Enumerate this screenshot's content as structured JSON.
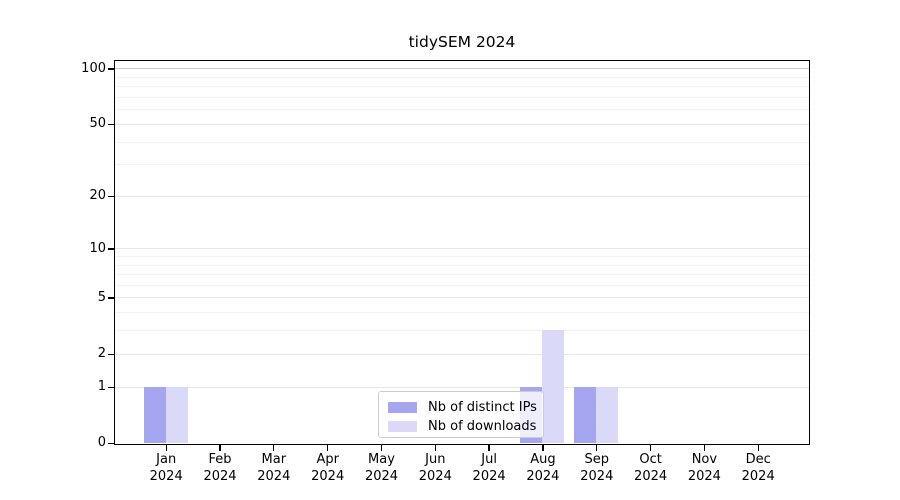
{
  "chart_data": {
    "type": "bar",
    "title": "tidySEM 2024",
    "categories": [
      "Jan 2024",
      "Feb 2024",
      "Mar 2024",
      "Apr 2024",
      "May 2024",
      "Jun 2024",
      "Jul 2024",
      "Aug 2024",
      "Sep 2024",
      "Oct 2024",
      "Nov 2024",
      "Dec 2024"
    ],
    "series": [
      {
        "name": "Nb of distinct IPs",
        "color": "#a5a5f0",
        "values": [
          1,
          0,
          0,
          0,
          0,
          0,
          0,
          1,
          1,
          0,
          0,
          0
        ]
      },
      {
        "name": "Nb of downloads",
        "color": "#dadaf8",
        "values": [
          1,
          0,
          0,
          0,
          0,
          0,
          0,
          3,
          1,
          0,
          0,
          0
        ]
      }
    ],
    "xlabel": "",
    "ylabel": "",
    "yticks": [
      0,
      1,
      2,
      5,
      10,
      20,
      50,
      100
    ],
    "minor_gridlines": [
      3,
      4,
      6,
      7,
      8,
      9,
      30,
      40,
      60,
      70,
      80,
      90
    ],
    "scale": "log10(1+x)",
    "ylim": [
      0,
      115
    ],
    "grid": "horizontal",
    "legend_position": "lower center"
  },
  "colors": {
    "background": "#ffffff",
    "axis": "#000000",
    "grid_major": "#e7e7e7",
    "grid_minor": "#f2f2f2",
    "grid_top": "#cccccc",
    "legend_border": "#cccccc"
  }
}
